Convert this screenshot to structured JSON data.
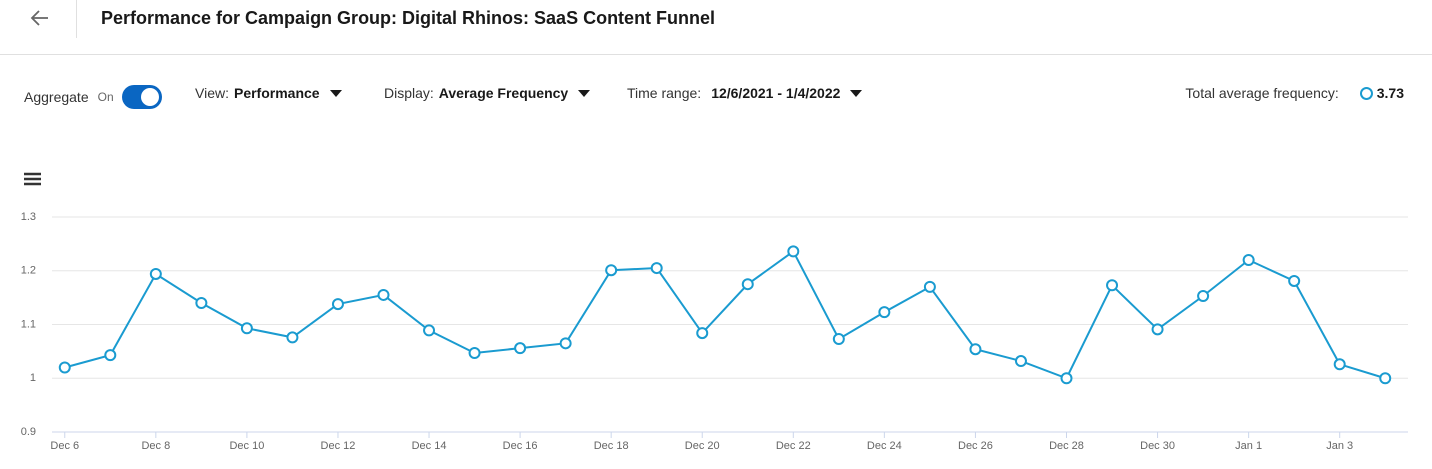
{
  "header": {
    "title": "Performance for Campaign Group: Digital Rhinos: SaaS Content Funnel"
  },
  "controls": {
    "aggregate_label": "Aggregate",
    "aggregate_state": "On",
    "view_label": "View:",
    "view_value": "Performance",
    "display_label": "Display:",
    "display_value": "Average Frequency",
    "time_label": "Time range:",
    "time_value": "12/6/2021 - 1/4/2022",
    "total_label": "Total average frequency:",
    "total_value": 3.73
  },
  "chart_data": {
    "type": "line",
    "color": "#1a9bd0",
    "grid": true,
    "categories": [
      "Dec 6",
      null,
      "Dec 8",
      null,
      "Dec 10",
      null,
      "Dec 12",
      null,
      "Dec 14",
      null,
      "Dec 16",
      null,
      "Dec 18",
      null,
      "Dec 20",
      null,
      "Dec 22",
      null,
      "Dec 24",
      null,
      "Dec 26",
      null,
      "Dec 28",
      null,
      "Dec 30",
      null,
      "Jan 1",
      null,
      "Jan 3",
      null
    ],
    "values": [
      1.02,
      1.043,
      1.194,
      1.14,
      1.093,
      1.076,
      1.138,
      1.155,
      1.089,
      1.047,
      1.056,
      1.065,
      1.201,
      1.205,
      1.084,
      1.175,
      1.236,
      1.073,
      1.123,
      1.17,
      1.054,
      1.032,
      1.0,
      1.173,
      1.091,
      1.153,
      1.22,
      1.181,
      1.026,
      1.0
    ],
    "ylim": [
      0.9,
      1.3
    ],
    "yticks": [
      0.9,
      1,
      1.1,
      1.2,
      1.3
    ]
  }
}
